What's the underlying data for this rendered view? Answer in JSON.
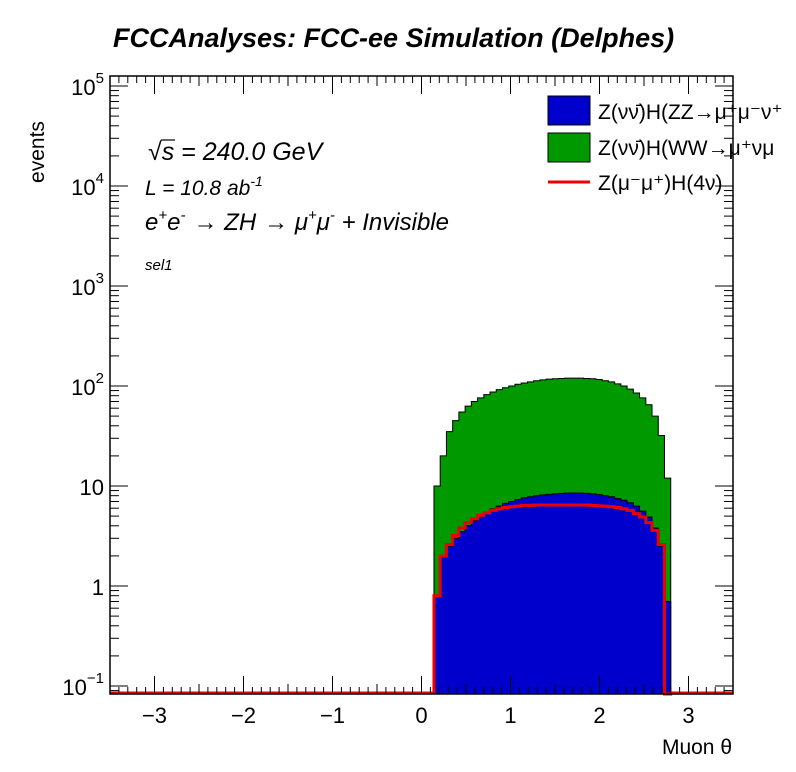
{
  "chart_data": {
    "type": "histogram",
    "title": "FCCAnalyses: FCC-ee Simulation (Delphes)",
    "xlabel": "Muon θ",
    "ylabel": "events",
    "xlim": [
      -3.5,
      3.5
    ],
    "ylim": [
      0.08,
      120000
    ],
    "yscale": "log",
    "grid": false,
    "legend_position": "top-right",
    "x_ticks": [
      "−3",
      "−2",
      "−1",
      "0",
      "1",
      "2",
      "3"
    ],
    "y_ticks": [
      {
        "base": "10",
        "exp": "−1"
      },
      {
        "base": "1",
        "exp": ""
      },
      {
        "base": "10",
        "exp": ""
      },
      {
        "base": "10",
        "exp": "2"
      },
      {
        "base": "10",
        "exp": "3"
      },
      {
        "base": "10",
        "exp": "4"
      },
      {
        "base": "10",
        "exp": "5"
      }
    ],
    "annotations": {
      "sqrt_s": "s",
      "energy": " = 240.0 GeV",
      "lumi": "L = 10.8 ab",
      "lumi_exp": "-1",
      "process_ee": "e",
      "process_ee_plus": "+",
      "process_e2": "e",
      "process_e2_minus": "-",
      "process_arrow1": "→ ZH",
      "process_arrow2": "→ μ",
      "process_mu_plus": "+",
      "process_mu": "μ",
      "process_mu_minus": "-",
      "process_tail": " + Invisible",
      "selection": "sel1"
    },
    "bins": {
      "x_start": 0.0,
      "bin_width": 0.07
    },
    "series": [
      {
        "name": "Z(νν̄)H(ZZ→μ⁺μ⁻ν",
        "legend_label": "Z(νν̄)H(ZZ→μ⁺μ⁻ν⁺",
        "role": "stack-bottom",
        "color": "#0000cc",
        "values": [
          0,
          0,
          0.8,
          2.0,
          2.5,
          3.0,
          3.5,
          4.0,
          4.5,
          5.0,
          5.5,
          5.9,
          6.3,
          6.7,
          7.0,
          7.3,
          7.6,
          7.8,
          8.0,
          8.15,
          8.25,
          8.35,
          8.45,
          8.5,
          8.5,
          8.5,
          8.45,
          8.35,
          8.2,
          8.0,
          7.8,
          7.5,
          7.2,
          6.8,
          6.3,
          5.6,
          4.9,
          3.8,
          2.5,
          0.7,
          0,
          0
        ]
      },
      {
        "name": "Z(νν̄)H(WW→μ⁺νμ",
        "legend_label": "Z(νν̄)H(WW→μ⁺νμ",
        "role": "stack-top",
        "color": "#009900",
        "values_total": [
          0,
          0,
          10,
          20,
          35,
          45,
          55,
          63,
          70,
          76,
          82,
          87,
          92,
          96,
          100,
          104,
          107,
          110,
          113,
          115,
          117,
          118,
          119,
          120,
          120,
          120,
          119,
          118,
          116,
          113,
          110,
          105,
          100,
          93,
          85,
          76,
          65,
          50,
          32,
          12,
          0,
          0
        ]
      },
      {
        "name": "Z(μ⁻μ⁺)H(4ν)",
        "legend_label": "Z(μ⁻μ⁺)H(4ν)",
        "role": "line",
        "color": "#ee0000",
        "values": [
          0,
          0,
          0.8,
          2.0,
          2.6,
          3.2,
          3.8,
          4.3,
          4.7,
          5.1,
          5.4,
          5.7,
          5.9,
          6.1,
          6.2,
          6.3,
          6.4,
          6.4,
          6.45,
          6.45,
          6.45,
          6.45,
          6.45,
          6.45,
          6.45,
          6.45,
          6.45,
          6.4,
          6.35,
          6.3,
          6.2,
          6.1,
          5.9,
          5.7,
          5.3,
          4.9,
          4.3,
          3.6,
          2.6,
          0.08,
          0,
          0
        ]
      }
    ]
  }
}
